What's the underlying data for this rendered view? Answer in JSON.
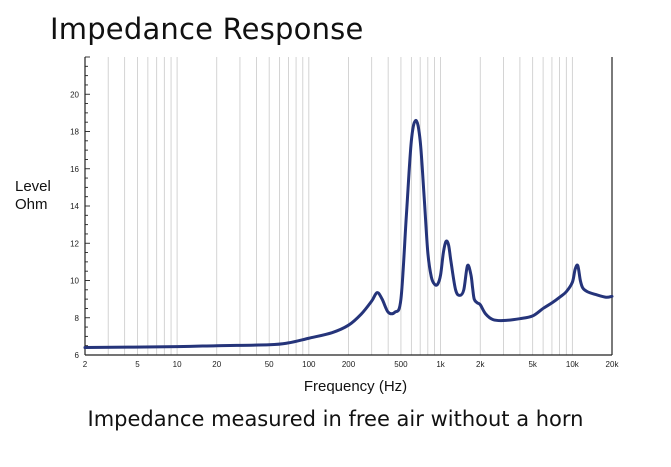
{
  "chart_data": {
    "type": "line",
    "title": "Impedance Response",
    "xlabel": "Frequency (Hz)",
    "ylabel_lines": [
      "Level",
      "Ohm"
    ],
    "caption": "Impedance measured in free air without a horn",
    "x_scale": "log",
    "xlim": [
      2,
      20000
    ],
    "ylim": [
      6,
      22
    ],
    "x_ticks": [
      {
        "value": 2,
        "label": "2"
      },
      {
        "value": 5,
        "label": "5"
      },
      {
        "value": 10,
        "label": "10"
      },
      {
        "value": 20,
        "label": "20"
      },
      {
        "value": 50,
        "label": "50"
      },
      {
        "value": 100,
        "label": "100"
      },
      {
        "value": 200,
        "label": "200"
      },
      {
        "value": 500,
        "label": "500"
      },
      {
        "value": 1000,
        "label": "1k"
      },
      {
        "value": 2000,
        "label": "2k"
      },
      {
        "value": 5000,
        "label": "5k"
      },
      {
        "value": 10000,
        "label": "10k"
      },
      {
        "value": 20000,
        "label": "20k"
      }
    ],
    "y_ticks": [
      {
        "value": 6,
        "label": "6"
      },
      {
        "value": 8,
        "label": "8"
      },
      {
        "value": 10,
        "label": "10"
      },
      {
        "value": 12,
        "label": "12"
      },
      {
        "value": 14,
        "label": "14"
      },
      {
        "value": 16,
        "label": "16"
      },
      {
        "value": 18,
        "label": "18"
      },
      {
        "value": 20,
        "label": "20"
      }
    ],
    "grid": true,
    "line_color": "#25347a",
    "series": [
      {
        "x": [
          2,
          10,
          20,
          50,
          70,
          100,
          150,
          200,
          250,
          300,
          330,
          360,
          400,
          450,
          500,
          550,
          600,
          650,
          700,
          750,
          800,
          850,
          900,
          950,
          1000,
          1050,
          1100,
          1150,
          1200,
          1300,
          1400,
          1500,
          1600,
          1700,
          1750,
          1800,
          1900,
          2000,
          2200,
          2500,
          3000,
          4000,
          5000,
          6000,
          7000,
          8000,
          9000,
          10000,
          10500,
          11000,
          11500,
          12000,
          13000,
          15000,
          18000,
          20000
        ],
        "y": [
          6.4,
          6.45,
          6.5,
          6.55,
          6.65,
          6.9,
          7.2,
          7.6,
          8.2,
          8.9,
          9.35,
          9.0,
          8.3,
          8.3,
          9.0,
          13.5,
          17.5,
          18.6,
          17.5,
          14.5,
          11.5,
          10.2,
          9.8,
          9.8,
          10.3,
          11.5,
          12.1,
          11.9,
          11.0,
          9.5,
          9.2,
          9.5,
          10.8,
          10.3,
          9.6,
          9.0,
          8.8,
          8.7,
          8.2,
          7.9,
          7.85,
          7.95,
          8.1,
          8.5,
          8.8,
          9.1,
          9.4,
          9.9,
          10.6,
          10.8,
          10.0,
          9.6,
          9.4,
          9.25,
          9.1,
          9.15
        ]
      }
    ]
  }
}
